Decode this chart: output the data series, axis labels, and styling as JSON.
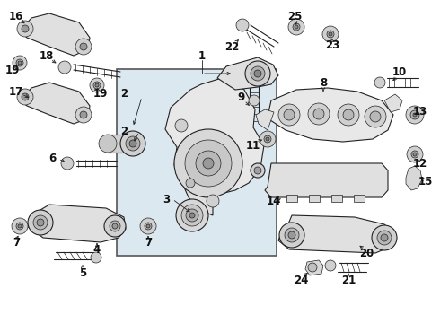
{
  "bg_color": "#ffffff",
  "line_color": "#222222",
  "box_fill": "#dce8f0",
  "box_stroke": "#444444",
  "fig_width": 4.9,
  "fig_height": 3.6,
  "dpi": 100
}
